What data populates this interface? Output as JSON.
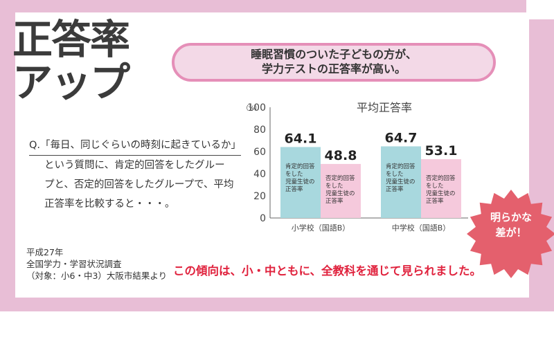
{
  "title_badge": {
    "line1": "正答率",
    "line2": "アップ"
  },
  "headline": {
    "line1": "睡眠習慣のついた子どもの方が、",
    "line2": "学力テストの正答率が高い。"
  },
  "question": {
    "line1": "Q.「毎日、同じぐらいの時刻に起きているか」",
    "line2": "という質問に、肯定的回答をしたグルー",
    "line3": "プと、否定的回答をしたグループで、平均",
    "line4": "正答率を比較すると・・・。"
  },
  "source": {
    "line1": "平成27年",
    "line2": "全国学力・学習状況調査",
    "line3": "（対象：小6・中3）大阪市結果より"
  },
  "footer_note": "この傾向は、小・中ともに、全教科を通じて見られました。",
  "burst": {
    "line1": "明らかな",
    "line2": "差が！",
    "color": "#e4606d"
  },
  "colors": {
    "frame": "#e8bed6",
    "positive": "#a8d8de",
    "negative": "#f5c9dc",
    "accent_red": "#e0223d"
  },
  "chart_data": {
    "type": "bar",
    "title": "平均正答率",
    "unit_label": "（%）",
    "ylim": [
      0,
      100
    ],
    "yticks": [
      "0",
      "20",
      "40",
      "60",
      "80",
      "100"
    ],
    "categories": [
      "小学校（国語B）",
      "中学校（国語B）"
    ],
    "series": [
      {
        "label": "肯定的回答をした児童生徒の正答率",
        "label_lines": [
          "肯定的回答",
          "をした",
          "児童生徒の",
          "正答率"
        ],
        "values": [
          64.1,
          64.7
        ],
        "value_labels": [
          "64.1",
          "64.7"
        ],
        "color": "#a8d8de"
      },
      {
        "label": "否定的回答をした児童生徒の正答率",
        "label_lines": [
          "否定的回答",
          "をした",
          "児童生徒の",
          "正答率"
        ],
        "values": [
          48.8,
          53.1
        ],
        "value_labels": [
          "48.8",
          "53.1"
        ],
        "color": "#f5c9dc"
      }
    ]
  }
}
